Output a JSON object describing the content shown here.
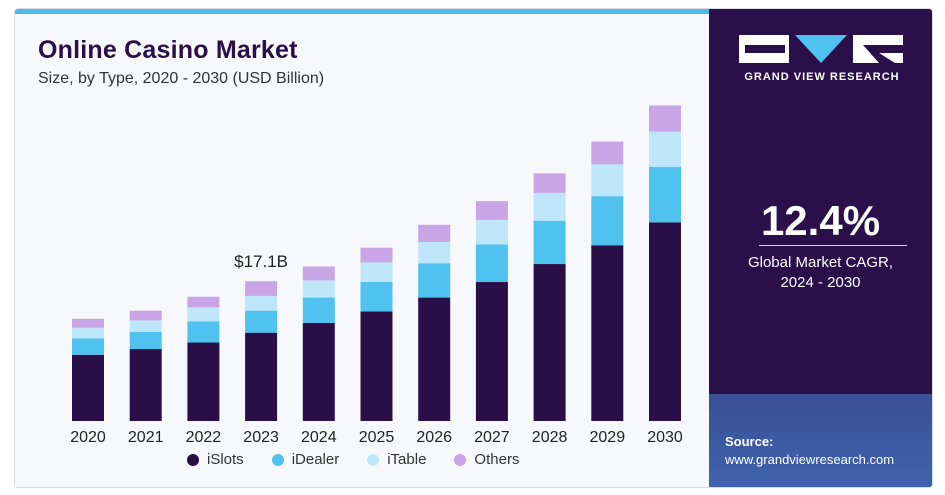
{
  "header": {
    "title": "Online Casino Market",
    "subtitle": "Size, by Type, 2020 - 2030 (USD Billion)"
  },
  "chart_data": {
    "type": "bar",
    "stacked": true,
    "categories": [
      "2020",
      "2021",
      "2022",
      "2023",
      "2024",
      "2025",
      "2026",
      "2027",
      "2028",
      "2029",
      "2030"
    ],
    "series": [
      {
        "name": "iSlots",
        "color": "#2a0e48",
        "values": [
          8.1,
          8.8,
          9.6,
          10.8,
          12.0,
          13.4,
          15.1,
          17.0,
          19.2,
          21.5,
          24.3
        ]
      },
      {
        "name": "iDealer",
        "color": "#4fc2f0",
        "values": [
          2.0,
          2.1,
          2.6,
          2.7,
          3.1,
          3.6,
          4.2,
          4.6,
          5.3,
          6.0,
          6.8
        ]
      },
      {
        "name": "iTable",
        "color": "#bde6fb",
        "values": [
          1.3,
          1.4,
          1.7,
          1.8,
          2.1,
          2.4,
          2.6,
          3.0,
          3.4,
          3.9,
          4.3
        ]
      },
      {
        "name": "Others",
        "color": "#c9a5e8",
        "values": [
          1.1,
          1.2,
          1.3,
          1.8,
          1.7,
          1.8,
          2.1,
          2.3,
          2.4,
          2.8,
          3.2
        ]
      }
    ],
    "annotation": {
      "category": "2023",
      "text": "$17.1B"
    },
    "ylim": [
      0,
      40
    ],
    "legend_position": "bottom",
    "grid": false
  },
  "side": {
    "logo_text": "GRAND VIEW RESEARCH",
    "cagr_value": "12.4%",
    "cagr_label_line1": "Global Market CAGR,",
    "cagr_label_line2": "2024 - 2030",
    "source_label": "Source:",
    "source_url": "www.grandviewresearch.com"
  }
}
